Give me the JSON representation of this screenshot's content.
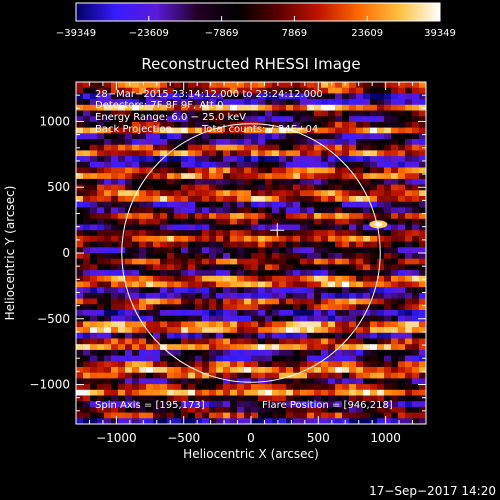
{
  "chart_data": {
    "type": "heatmap",
    "title": "Reconstructed RHESSI Image",
    "xlabel": "Heliocentric X (arcsec)",
    "ylabel": "Heliocentric Y (arcsec)",
    "xlim": [
      -1300,
      1300
    ],
    "ylim": [
      -1300,
      1300
    ],
    "x_ticks": [
      -1000,
      -500,
      0,
      500,
      1000
    ],
    "x_tick_labels": [
      "−1000",
      "−500",
      "0",
      "500",
      "1000"
    ],
    "y_ticks": [
      -1000,
      -500,
      0,
      500,
      1000
    ],
    "y_tick_labels": [
      "−1000",
      "−500",
      "0",
      "500",
      "1000"
    ],
    "colorbar": {
      "range": [
        -39349,
        39349
      ],
      "ticks": [
        -39349,
        -23609,
        -7869,
        7869,
        23609,
        39349
      ],
      "tick_labels": [
        "−39349",
        "−23609",
        "−7869",
        "7869",
        "23609",
        "39349"
      ],
      "colormap_stops": [
        "#000064",
        "#3a1cff",
        "#5a1ad8",
        "#220026",
        "#000000",
        "#5a0000",
        "#c01400",
        "#ff6a00",
        "#ffc040",
        "#ffffff"
      ]
    },
    "annotations": {
      "line1": "28−Mar−2015 23:14:12.000 to 23:24:12.000",
      "line2": "Detectors: 7F 8F 9F, Att 0",
      "line3": "Energy Range: 6.0 − 25.0 keV",
      "line4a": "Back Projection",
      "line4b": "Total counts: 7.34E+04",
      "spin_axis": "Spin Axis = [195,173]",
      "flare_position": "Flare Position = [946,218]"
    },
    "solar_disk_radius_arcsec": 960,
    "map_center_marker": [
      195,
      173
    ],
    "flare_position": [
      946,
      218
    ]
  },
  "footer": {
    "timestamp": "17−Sep−2017 14:20"
  }
}
